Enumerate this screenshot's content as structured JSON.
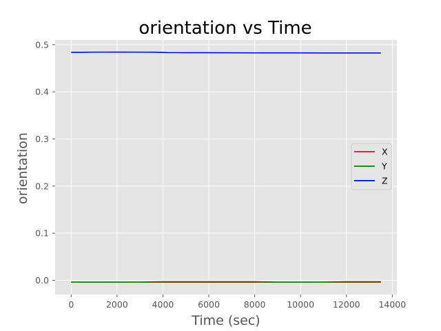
{
  "chart_data": {
    "type": "line",
    "title": "orientation vs Time",
    "xlabel": "Time (sec)",
    "ylabel": "orientation",
    "xlim": [
      -700,
      14200
    ],
    "ylim": [
      -0.03,
      0.51
    ],
    "xticks": [
      0,
      2000,
      4000,
      6000,
      8000,
      10000,
      12000,
      14000
    ],
    "yticks": [
      0.0,
      0.1,
      0.2,
      0.3,
      0.4,
      0.5
    ],
    "grid": true,
    "legend_position": "center-right",
    "series": [
      {
        "name": "X",
        "color": "#ff0000",
        "x": [
          0,
          1000,
          2000,
          3000,
          4000,
          5000,
          6000,
          7000,
          8000,
          9000,
          10000,
          11000,
          12000,
          13000,
          13500
        ],
        "y": [
          -0.004,
          -0.004,
          -0.004,
          -0.004,
          -0.004,
          -0.004,
          -0.004,
          -0.004,
          -0.004,
          -0.004,
          -0.004,
          -0.004,
          -0.004,
          -0.004,
          -0.004
        ]
      },
      {
        "name": "Y",
        "color": "#008000",
        "x": [
          0,
          1000,
          2000,
          3000,
          4000,
          5000,
          6000,
          7000,
          8000,
          9000,
          10000,
          11000,
          12000,
          13000,
          13500
        ],
        "y": [
          -0.004,
          -0.004,
          -0.004,
          -0.004,
          -0.003,
          -0.003,
          -0.003,
          -0.003,
          -0.003,
          -0.004,
          -0.004,
          -0.004,
          -0.003,
          -0.003,
          -0.003
        ]
      },
      {
        "name": "Z",
        "color": "#0000ff",
        "x": [
          0,
          500,
          1000,
          2000,
          3000,
          3700,
          4200,
          5000,
          6000,
          7000,
          8000,
          9000,
          10000,
          11000,
          12000,
          13000,
          13500
        ],
        "y": [
          0.484,
          0.484,
          0.4842,
          0.4843,
          0.4842,
          0.4841,
          0.4832,
          0.483,
          0.483,
          0.4828,
          0.4826,
          0.4826,
          0.4826,
          0.4825,
          0.4825,
          0.4825,
          0.4824
        ]
      }
    ]
  }
}
